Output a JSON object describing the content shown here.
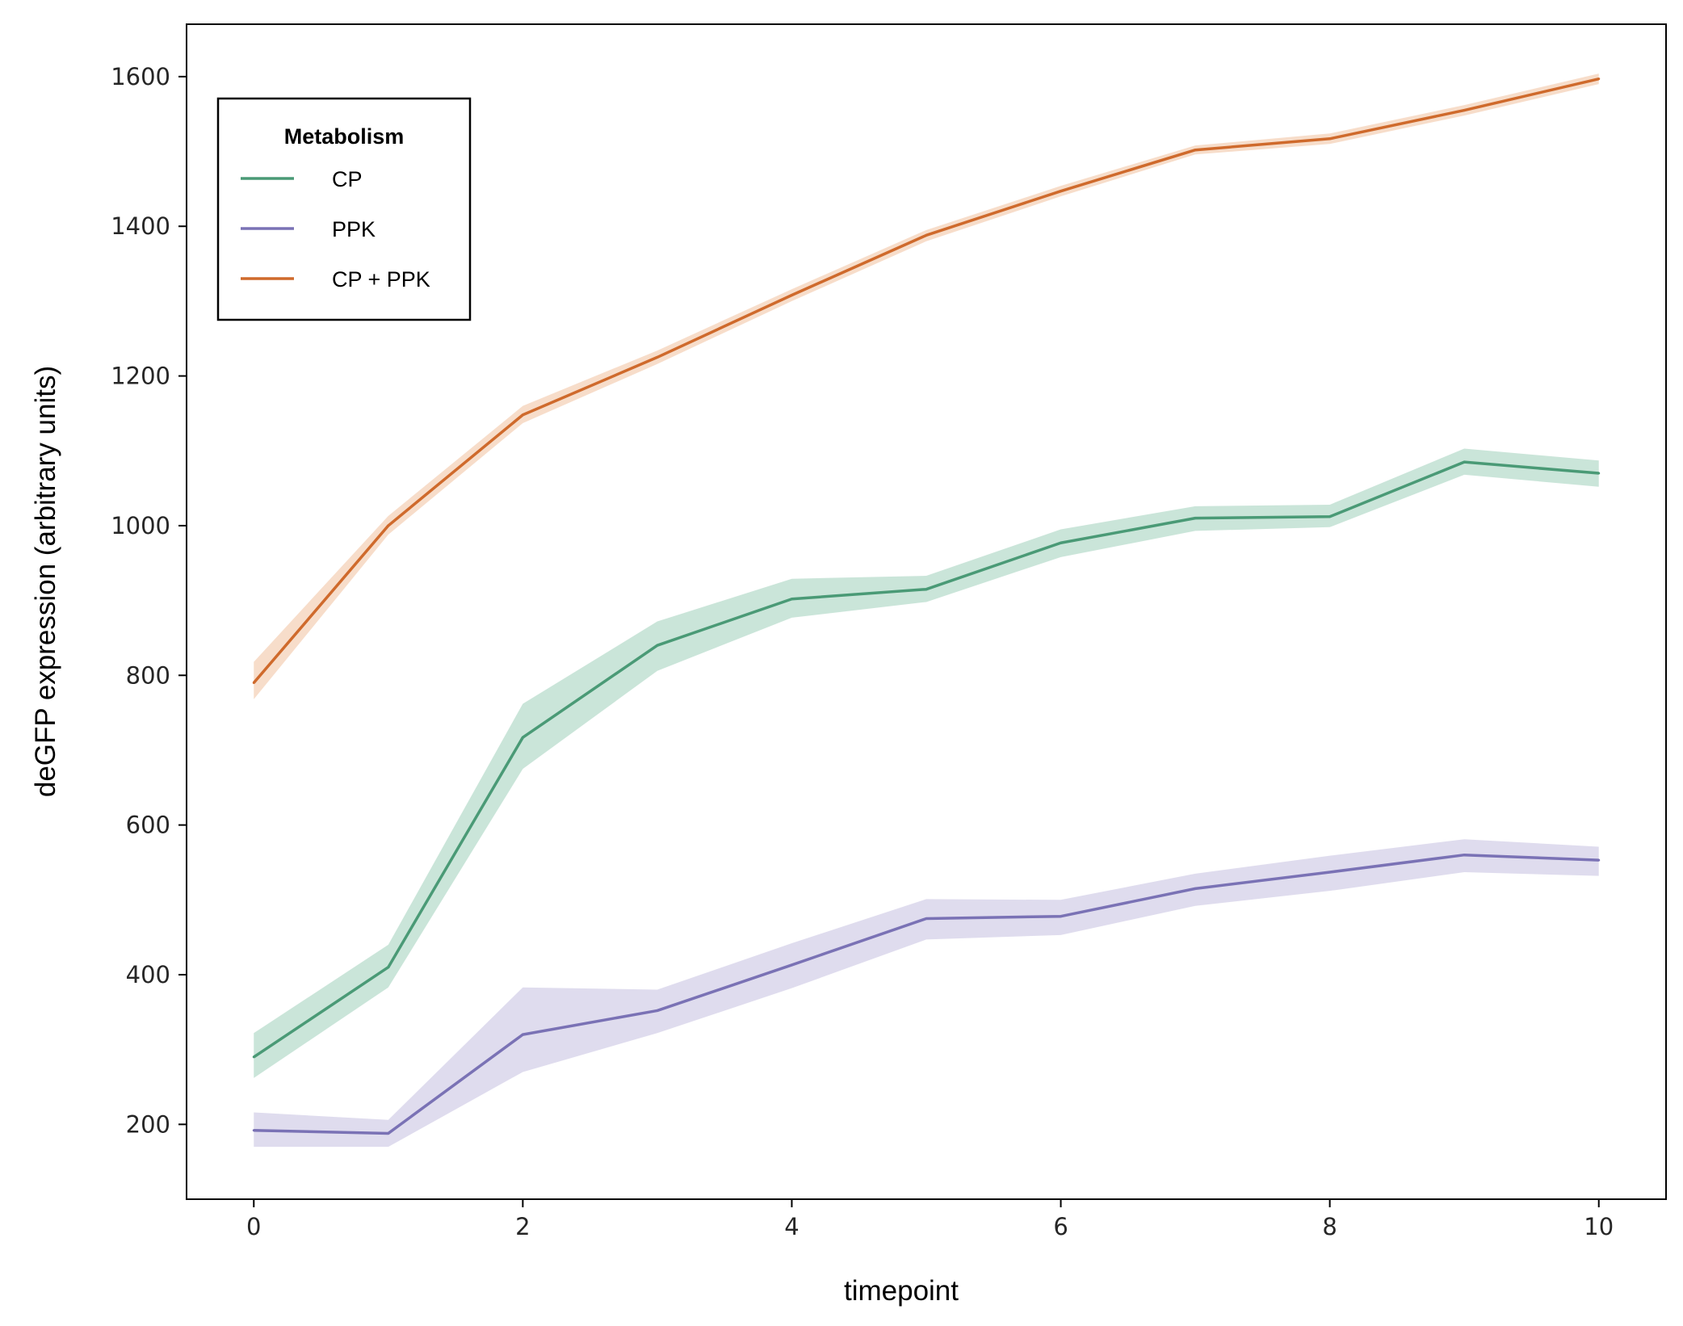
{
  "chart_data": {
    "type": "line",
    "xlabel": "timepoint",
    "ylabel": "deGFP expression (arbitrary units)",
    "xlim": [
      -0.5,
      10.5
    ],
    "ylim": [
      100,
      1670
    ],
    "xticks": [
      0,
      2,
      4,
      6,
      8,
      10
    ],
    "yticks": [
      200,
      400,
      600,
      800,
      1000,
      1200,
      1400,
      1600
    ],
    "grid": false,
    "legend": {
      "title": "Metabolism",
      "position": "top-left"
    },
    "x": [
      0,
      1,
      2,
      3,
      4,
      5,
      6,
      7,
      8,
      9,
      10
    ],
    "series": [
      {
        "name": "CP",
        "color": "#4a9a76",
        "band_color": "#a7d4bf",
        "values": [
          290,
          410,
          717,
          840,
          902,
          915,
          977,
          1010,
          1012,
          1085,
          1070
        ],
        "lower": [
          262,
          383,
          675,
          806,
          877,
          898,
          958,
          993,
          998,
          1068,
          1052
        ],
        "upper": [
          322,
          440,
          762,
          872,
          929,
          933,
          995,
          1026,
          1028,
          1103,
          1087
        ]
      },
      {
        "name": "PPK",
        "color": "#7a72b5",
        "band_color": "#c9c5e3",
        "values": [
          192,
          188,
          320,
          352,
          413,
          475,
          478,
          515,
          537,
          560,
          553
        ],
        "lower": [
          170,
          170,
          270,
          322,
          382,
          447,
          453,
          492,
          512,
          537,
          532
        ],
        "upper": [
          216,
          206,
          383,
          380,
          442,
          501,
          500,
          535,
          559,
          581,
          571
        ]
      },
      {
        "name": "CP + PPK",
        "color": "#cf6a2c",
        "band_color": "#f2c6a6",
        "values": [
          790,
          1000,
          1148,
          1225,
          1308,
          1388,
          1447,
          1502,
          1517,
          1555,
          1597
        ],
        "lower": [
          768,
          988,
          1137,
          1216,
          1300,
          1380,
          1440,
          1496,
          1510,
          1548,
          1590
        ],
        "upper": [
          818,
          1013,
          1160,
          1234,
          1316,
          1395,
          1454,
          1508,
          1524,
          1562,
          1604
        ]
      }
    ]
  }
}
